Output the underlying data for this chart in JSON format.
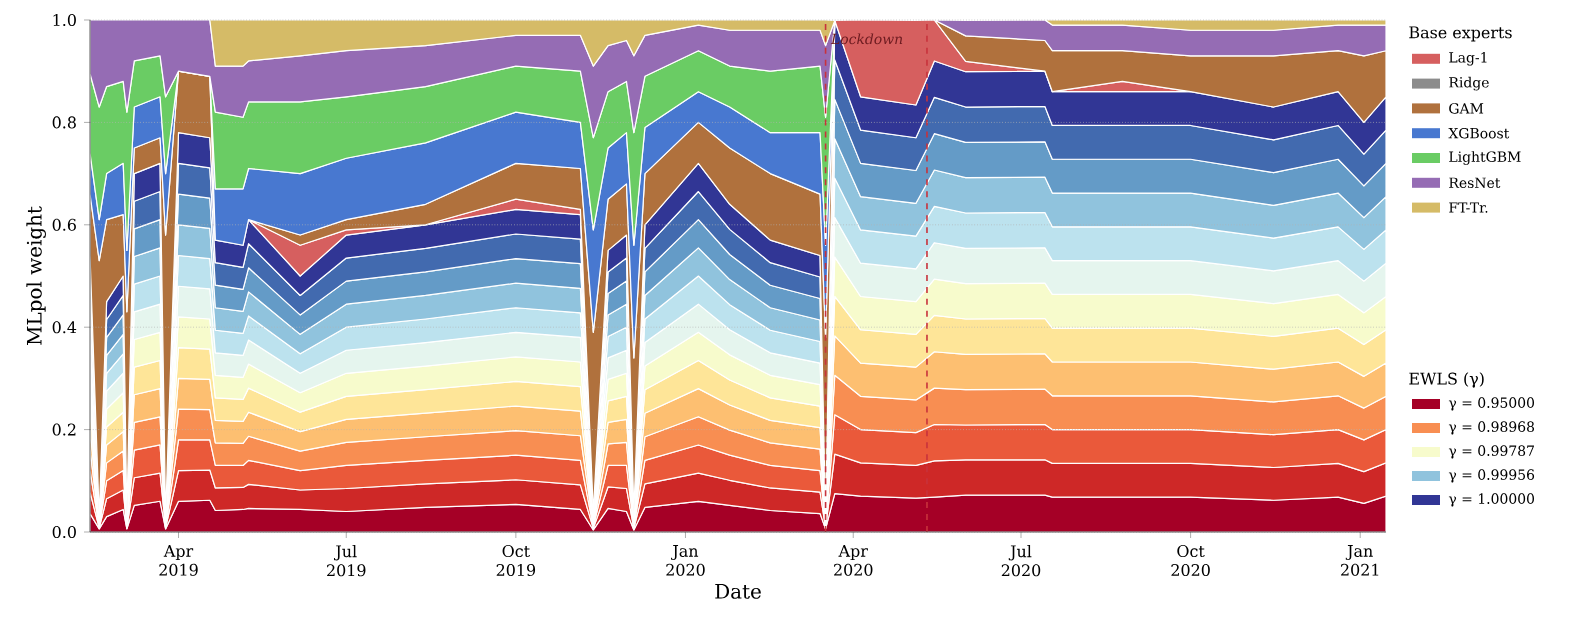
{
  "chart_data": {
    "type": "area",
    "stacked": true,
    "xlabel": "Date",
    "ylabel": "MLpol weight",
    "legend": "right",
    "legend_title": "Base experts",
    "annotations": [
      "EWLS (γ)"
    ],
    "grid": "y",
    "xlim": [
      "2019-02-12",
      "2021-01-15"
    ],
    "ylim": [
      0,
      1
    ],
    "xticks": [
      {
        "value": "2019-04-01",
        "label": "Apr 2019"
      },
      {
        "value": "2019-07-01",
        "label": "Jul 2019"
      },
      {
        "value": "2019-10-01",
        "label": "Oct 2019"
      },
      {
        "value": "2020-01-01",
        "label": "Jan 2020"
      },
      {
        "value": "2020-04-01",
        "label": "Apr 2020"
      },
      {
        "value": "2020-07-01",
        "label": "Jul 2020"
      },
      {
        "value": "2020-10-01",
        "label": "Oct 2020"
      },
      {
        "value": "2021-01-01",
        "label": "Jan 2021"
      }
    ],
    "yticks": [
      {
        "value": 0,
        "label": "0.0"
      },
      {
        "value": 0.2,
        "label": "0.2"
      },
      {
        "value": 0.4,
        "label": "0.4"
      },
      {
        "value": 0.6,
        "label": "0.6"
      },
      {
        "value": 0.8,
        "label": "0.8"
      },
      {
        "value": 1,
        "label": "1.0"
      }
    ],
    "ref_lines": [
      {
        "axis": "x",
        "value": "2020-03-17",
        "label": "Lockdown",
        "color": "#c8323c",
        "line_style": "dashed"
      },
      {
        "axis": "x",
        "value": "2020-05-11",
        "color": "#c8323c",
        "line_style": "dashed"
      }
    ],
    "x": [
      "2019-02-12",
      "2019-02-17",
      "2019-02-21",
      "2019-03-02",
      "2019-03-04",
      "2019-03-08",
      "2019-03-22",
      "2019-03-25",
      "2019-04-01",
      "2019-04-18",
      "2019-04-21",
      "2019-05-06",
      "2019-05-09",
      "2019-06-06",
      "2019-07-01",
      "2019-08-13",
      "2019-10-01",
      "2019-11-05",
      "2019-11-12",
      "2019-11-20",
      "2019-11-30",
      "2019-12-04",
      "2019-12-10",
      "2020-01-08",
      "2020-01-25",
      "2020-02-16",
      "2020-03-14",
      "2020-03-17",
      "2020-03-22",
      "2020-04-05",
      "2020-05-05",
      "2020-05-15",
      "2020-06-01",
      "2020-07-14",
      "2020-07-18",
      "2020-08-25",
      "2020-10-01",
      "2020-11-15",
      "2020-12-20",
      "2021-01-03",
      "2021-01-15"
    ],
    "series": [
      {
        "name": "γ = 0.95000",
        "color": "#a50026",
        "values": [
          0.036,
          0.006,
          0.03,
          0.044,
          0.006,
          0.052,
          0.06,
          0.006,
          0.06,
          0.062,
          0.042,
          0.044,
          0.046,
          0.044,
          0.04,
          0.048,
          0.054,
          0.044,
          0.004,
          0.046,
          0.04,
          0.004,
          0.048,
          0.06,
          0.052,
          0.042,
          0.036,
          0.006,
          0.075,
          0.07,
          0.066,
          0.068,
          0.072,
          0.072,
          0.068,
          0.068,
          0.068,
          0.062,
          0.068,
          0.056,
          0.07
        ]
      },
      {
        "color": "#ce2827",
        "values": [
          0.042,
          0.002,
          0.035,
          0.038,
          0.002,
          0.054,
          0.055,
          0.002,
          0.06,
          0.059,
          0.044,
          0.043,
          0.047,
          0.038,
          0.045,
          0.046,
          0.048,
          0.048,
          0.003,
          0.042,
          0.045,
          0.003,
          0.046,
          0.055,
          0.049,
          0.044,
          0.042,
          0.002,
          0.077,
          0.065,
          0.064,
          0.071,
          0.069,
          0.069,
          0.066,
          0.066,
          0.066,
          0.064,
          0.066,
          0.062,
          0.065
        ]
      },
      {
        "color": "#ea593a",
        "values": [
          0.042,
          0.002,
          0.035,
          0.038,
          0.002,
          0.054,
          0.055,
          0.002,
          0.06,
          0.059,
          0.044,
          0.043,
          0.047,
          0.038,
          0.045,
          0.046,
          0.048,
          0.048,
          0.003,
          0.042,
          0.045,
          0.003,
          0.046,
          0.055,
          0.049,
          0.044,
          0.042,
          0.002,
          0.077,
          0.065,
          0.064,
          0.071,
          0.068,
          0.069,
          0.066,
          0.066,
          0.066,
          0.064,
          0.066,
          0.062,
          0.065
        ]
      },
      {
        "name": "γ = 0.98968",
        "color": "#f88e52",
        "values": [
          0.042,
          0.002,
          0.035,
          0.038,
          0.002,
          0.054,
          0.055,
          0.002,
          0.06,
          0.059,
          0.044,
          0.043,
          0.047,
          0.038,
          0.045,
          0.046,
          0.048,
          0.048,
          0.003,
          0.042,
          0.045,
          0.003,
          0.046,
          0.055,
          0.049,
          0.044,
          0.042,
          0.002,
          0.077,
          0.065,
          0.064,
          0.071,
          0.069,
          0.069,
          0.066,
          0.066,
          0.066,
          0.064,
          0.066,
          0.062,
          0.065
        ]
      },
      {
        "color": "#fdbf71",
        "values": [
          0.042,
          0.002,
          0.035,
          0.038,
          0.002,
          0.054,
          0.055,
          0.002,
          0.06,
          0.059,
          0.044,
          0.043,
          0.047,
          0.038,
          0.045,
          0.046,
          0.048,
          0.048,
          0.003,
          0.042,
          0.045,
          0.003,
          0.046,
          0.055,
          0.049,
          0.044,
          0.042,
          0.002,
          0.077,
          0.065,
          0.064,
          0.071,
          0.069,
          0.069,
          0.066,
          0.066,
          0.066,
          0.064,
          0.066,
          0.062,
          0.065
        ]
      },
      {
        "color": "#fee598",
        "values": [
          0.042,
          0.002,
          0.035,
          0.038,
          0.002,
          0.054,
          0.055,
          0.002,
          0.06,
          0.059,
          0.044,
          0.043,
          0.047,
          0.038,
          0.045,
          0.046,
          0.048,
          0.048,
          0.003,
          0.042,
          0.045,
          0.003,
          0.046,
          0.055,
          0.049,
          0.044,
          0.042,
          0.002,
          0.077,
          0.065,
          0.064,
          0.071,
          0.069,
          0.069,
          0.066,
          0.066,
          0.066,
          0.064,
          0.066,
          0.062,
          0.065
        ]
      },
      {
        "name": "γ = 0.99787",
        "color": "#f7fbcc",
        "values": [
          0.042,
          0.002,
          0.035,
          0.038,
          0.002,
          0.054,
          0.055,
          0.002,
          0.06,
          0.059,
          0.044,
          0.043,
          0.047,
          0.038,
          0.045,
          0.046,
          0.048,
          0.048,
          0.003,
          0.042,
          0.045,
          0.003,
          0.046,
          0.055,
          0.049,
          0.044,
          0.042,
          0.002,
          0.077,
          0.065,
          0.064,
          0.071,
          0.069,
          0.069,
          0.066,
          0.066,
          0.066,
          0.064,
          0.066,
          0.062,
          0.065
        ]
      },
      {
        "color": "#e5f5ee",
        "values": [
          0.042,
          0.002,
          0.035,
          0.038,
          0.002,
          0.054,
          0.055,
          0.002,
          0.06,
          0.059,
          0.044,
          0.043,
          0.047,
          0.038,
          0.045,
          0.046,
          0.048,
          0.048,
          0.003,
          0.042,
          0.045,
          0.003,
          0.046,
          0.055,
          0.049,
          0.044,
          0.042,
          0.002,
          0.077,
          0.065,
          0.064,
          0.071,
          0.069,
          0.069,
          0.066,
          0.066,
          0.066,
          0.064,
          0.066,
          0.062,
          0.065
        ]
      },
      {
        "color": "#bce2ee",
        "values": [
          0.042,
          0.002,
          0.035,
          0.038,
          0.002,
          0.054,
          0.055,
          0.002,
          0.06,
          0.059,
          0.044,
          0.043,
          0.047,
          0.038,
          0.045,
          0.046,
          0.048,
          0.048,
          0.003,
          0.042,
          0.045,
          0.003,
          0.046,
          0.055,
          0.049,
          0.044,
          0.042,
          0.002,
          0.077,
          0.065,
          0.064,
          0.071,
          0.069,
          0.069,
          0.066,
          0.066,
          0.066,
          0.064,
          0.066,
          0.062,
          0.065
        ]
      },
      {
        "name": "γ = 0.99956",
        "color": "#90c3dd",
        "values": [
          0.042,
          0.002,
          0.035,
          0.038,
          0.002,
          0.054,
          0.055,
          0.002,
          0.06,
          0.059,
          0.044,
          0.043,
          0.047,
          0.038,
          0.045,
          0.046,
          0.048,
          0.048,
          0.003,
          0.042,
          0.045,
          0.003,
          0.046,
          0.055,
          0.049,
          0.044,
          0.042,
          0.002,
          0.077,
          0.065,
          0.064,
          0.071,
          0.069,
          0.069,
          0.066,
          0.066,
          0.066,
          0.064,
          0.066,
          0.062,
          0.065
        ]
      },
      {
        "color": "#649bc7",
        "values": [
          0.042,
          0.002,
          0.035,
          0.038,
          0.002,
          0.054,
          0.055,
          0.002,
          0.06,
          0.059,
          0.044,
          0.043,
          0.047,
          0.038,
          0.045,
          0.046,
          0.048,
          0.048,
          0.003,
          0.042,
          0.045,
          0.003,
          0.046,
          0.055,
          0.049,
          0.044,
          0.042,
          0.002,
          0.077,
          0.065,
          0.064,
          0.071,
          0.069,
          0.069,
          0.066,
          0.066,
          0.066,
          0.064,
          0.066,
          0.062,
          0.065
        ]
      },
      {
        "color": "#426aaf",
        "values": [
          0.042,
          0.002,
          0.035,
          0.038,
          0.002,
          0.054,
          0.055,
          0.002,
          0.06,
          0.059,
          0.044,
          0.043,
          0.047,
          0.038,
          0.045,
          0.046,
          0.048,
          0.048,
          0.003,
          0.042,
          0.045,
          0.003,
          0.046,
          0.055,
          0.049,
          0.044,
          0.042,
          0.002,
          0.077,
          0.065,
          0.064,
          0.071,
          0.069,
          0.069,
          0.066,
          0.066,
          0.066,
          0.064,
          0.066,
          0.062,
          0.065
        ]
      },
      {
        "name": "γ = 1.00000",
        "color": "#313695",
        "values": [
          0.042,
          0.002,
          0.035,
          0.038,
          0.002,
          0.054,
          0.055,
          0.002,
          0.06,
          0.059,
          0.044,
          0.043,
          0.047,
          0.038,
          0.045,
          0.046,
          0.048,
          0.048,
          0.003,
          0.042,
          0.045,
          0.003,
          0.046,
          0.055,
          0.049,
          0.044,
          0.042,
          0.002,
          0.077,
          0.065,
          0.064,
          0.071,
          0.069,
          0.069,
          0.066,
          0.066,
          0.066,
          0.064,
          0.066,
          0.062,
          0.065
        ]
      },
      {
        "name": "Lag-1",
        "color": "#d65f5f",
        "values": [
          null,
          null,
          null,
          null,
          null,
          null,
          null,
          null,
          null,
          null,
          null,
          null,
          0,
          0.06,
          0.01,
          0,
          0.02,
          0.01,
          0,
          null,
          null,
          null,
          null,
          null,
          null,
          null,
          null,
          null,
          0,
          0.15,
          0.165,
          0.08,
          0.02,
          0,
          0,
          0.02,
          0,
          null,
          null,
          null,
          null
        ]
      },
      {
        "name": "Ridge",
        "color": "#8c8c8c",
        "values": [
          null,
          null,
          null,
          null,
          null,
          null,
          null,
          null,
          null,
          null,
          null,
          null,
          null,
          null,
          null,
          null,
          null,
          null,
          null,
          null,
          null,
          null,
          null,
          null,
          null,
          null,
          null,
          null,
          null,
          null,
          null,
          null,
          null,
          null,
          null,
          null,
          null,
          null,
          null,
          null,
          null
        ]
      },
      {
        "name": "GAM",
        "color": "#b0713d",
        "values": [
          0.12,
          0.5,
          0.16,
          0.12,
          0.4,
          0.05,
          0.05,
          0.55,
          0.12,
          0.12,
          0,
          null,
          0,
          0.02,
          0.02,
          0.04,
          0.07,
          0.08,
          0.35,
          0.1,
          0.1,
          0.3,
          0.1,
          0.08,
          0.11,
          0.13,
          0.12,
          0.35,
          0,
          null,
          null,
          0,
          0.05,
          0.06,
          0.08,
          0.06,
          0.07,
          0.1,
          0.08,
          0.13,
          0.09
        ]
      },
      {
        "name": "XGBoost",
        "color": "#4878d0",
        "values": [
          0.08,
          0.08,
          0.09,
          0.1,
          0.12,
          0.08,
          0.08,
          0.12,
          0,
          0,
          0.1,
          0.11,
          0.1,
          0.12,
          0.12,
          0.12,
          0.1,
          0.09,
          0.2,
          0.1,
          0.1,
          0.22,
          0.09,
          0.06,
          0.08,
          0.08,
          0.12,
          0.18,
          0,
          null,
          null,
          null,
          null,
          null,
          null,
          null,
          null,
          null,
          null,
          null,
          null
        ]
      },
      {
        "name": "LightGBM",
        "color": "#6acc64",
        "values": [
          0.155,
          0.22,
          0.17,
          0.16,
          0.27,
          0.09,
          0.08,
          0.15,
          0,
          0,
          0.15,
          0.14,
          0.13,
          0.14,
          0.12,
          0.11,
          0.09,
          0.1,
          0.18,
          0.11,
          0.1,
          0.22,
          0.1,
          0.08,
          0.08,
          0.12,
          0.13,
          0.25,
          0,
          null,
          null,
          null,
          null,
          null,
          null,
          null,
          null,
          null,
          null,
          null,
          null
        ]
      },
      {
        "name": "ResNet",
        "color": "#956cb4",
        "values": [
          0.105,
          0.17,
          0.13,
          0.12,
          0.18,
          0.08,
          0.07,
          0.15,
          0.1,
          0.11,
          0.09,
          0.1,
          0.08,
          0.09,
          0.09,
          0.08,
          0.06,
          0.07,
          0.14,
          0.09,
          0.08,
          0.15,
          0.08,
          0.05,
          0.07,
          0.08,
          0.07,
          0.14,
          0,
          null,
          null,
          0,
          0.03,
          0.04,
          0.05,
          0.05,
          0.05,
          0.05,
          0.05,
          0.06,
          0.05
        ]
      },
      {
        "name": "FT-Tr.",
        "color": "#d5bb67",
        "values": [
          null,
          null,
          null,
          null,
          null,
          null,
          null,
          null,
          null,
          0,
          0.09,
          0.09,
          0.08,
          0.07,
          0.06,
          0.05,
          0.03,
          0.03,
          0.09,
          0.05,
          0.04,
          0.07,
          0.03,
          0.01,
          0.02,
          0.02,
          0.02,
          0.05,
          0,
          null,
          null,
          null,
          null,
          0,
          0.01,
          0.01,
          0.02,
          0.02,
          0.01,
          0.01,
          0.01
        ]
      }
    ]
  }
}
